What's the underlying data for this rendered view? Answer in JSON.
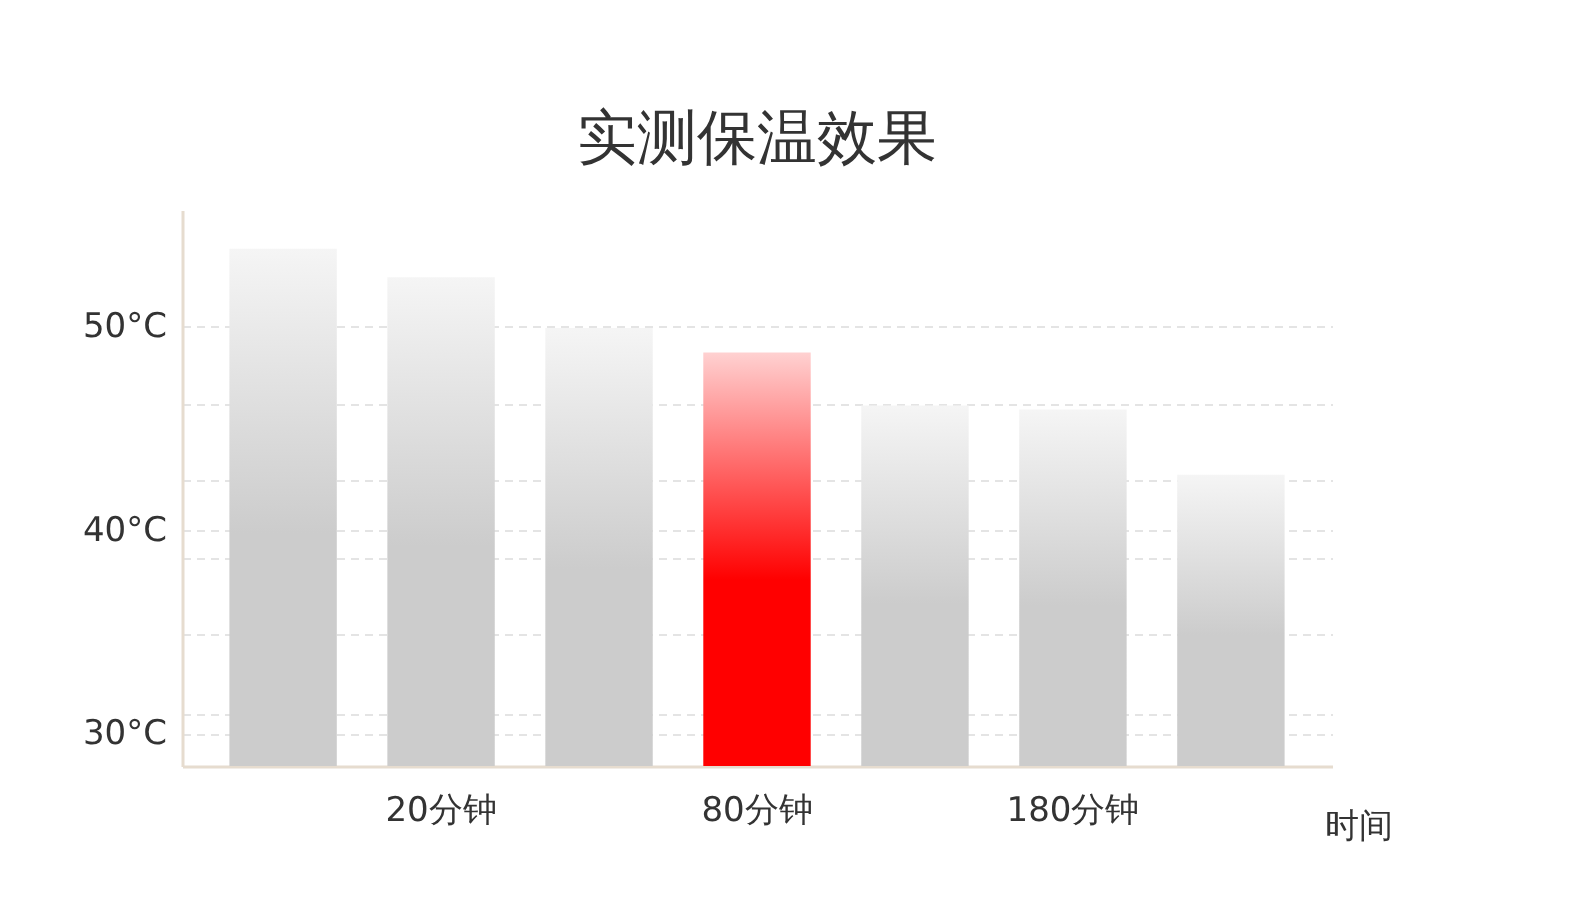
{
  "chart_data": {
    "type": "bar",
    "title": "实测保温效果",
    "xlabel": "时间",
    "categories": [
      null,
      "20分钟",
      null,
      "80分钟",
      null,
      "180分钟",
      null
    ],
    "values": [
      53.8,
      52.4,
      49.9,
      48.7,
      46.1,
      45.9,
      42.7
    ],
    "colors": [
      "#cccccc",
      "#cccccc",
      "#cccccc",
      "#ff0000",
      "#cccccc",
      "#cccccc",
      "#cccccc"
    ],
    "ylim": [
      28.4,
      55.7
    ],
    "yticks": [
      {
        "value": 30,
        "label": "30°C"
      },
      {
        "value": 31.0,
        "label": null
      },
      {
        "value": 34.9,
        "label": null
      },
      {
        "value": 38.6,
        "label": null
      },
      {
        "value": 40,
        "label": "40°C"
      },
      {
        "value": 42.4,
        "label": null
      },
      {
        "value": 46.2,
        "label": null
      },
      {
        "value": 50,
        "label": "50°C"
      }
    ],
    "grid": "y"
  }
}
